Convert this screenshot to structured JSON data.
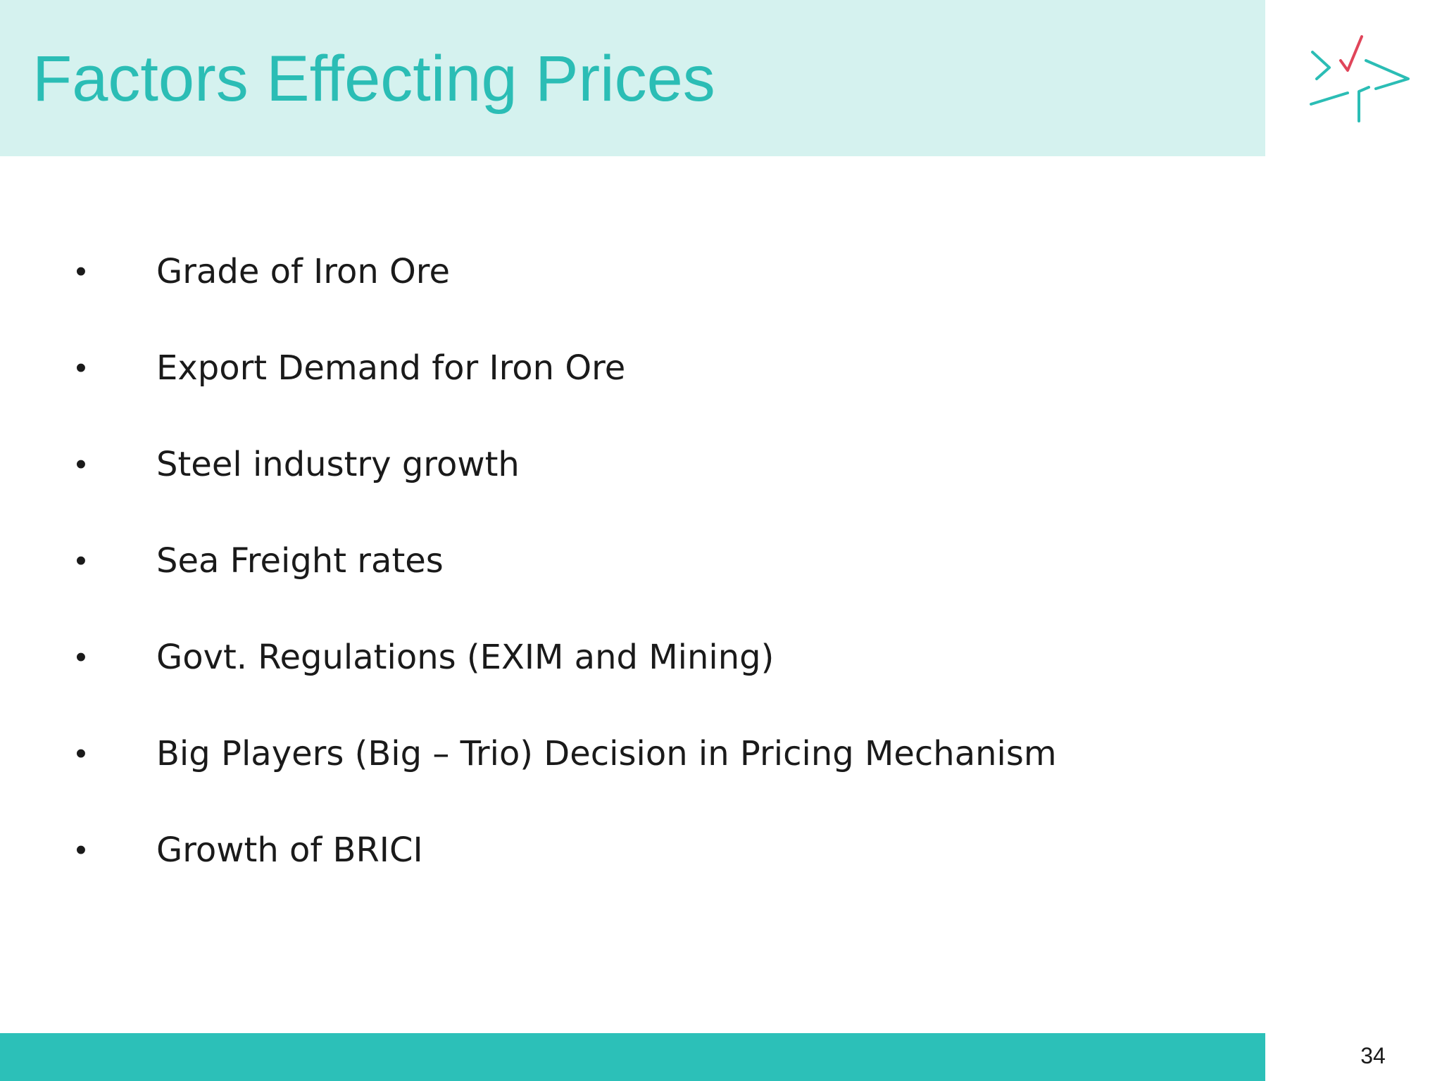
{
  "slide": {
    "title": "Factors Effecting Prices",
    "page_number": "34",
    "logo_icon": "star-arrows-logo-icon",
    "colors": {
      "title_band": "#d5f2ef",
      "title_text": "#2bbdb5",
      "footer_band": "#2cc0b8",
      "logo_teal": "#2bbdb5",
      "logo_red": "#e0455a",
      "body_text": "#1a1a1a"
    }
  },
  "bullets": {
    "marker": "•",
    "items": [
      "Grade of Iron Ore",
      "Export Demand for Iron Ore",
      "Steel industry growth",
      "Sea Freight rates",
      "Govt. Regulations (EXIM and Mining)",
      "Big Players (Big – Trio) Decision in Pricing Mechanism",
      "Growth of BRICI"
    ]
  }
}
